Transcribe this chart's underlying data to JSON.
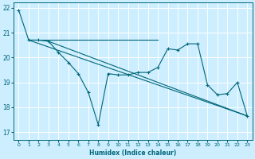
{
  "xlabel": "Humidex (Indice chaleur)",
  "bg_color": "#cceeff",
  "line_color": "#006677",
  "grid_color": "#ffffff",
  "xlim": [
    -0.5,
    23.5
  ],
  "ylim": [
    16.7,
    22.2
  ],
  "yticks": [
    17,
    18,
    19,
    20,
    21,
    22
  ],
  "xticks": [
    0,
    1,
    2,
    3,
    4,
    5,
    6,
    7,
    8,
    9,
    10,
    11,
    12,
    13,
    14,
    15,
    16,
    17,
    18,
    19,
    20,
    21,
    22,
    23
  ],
  "series_with_markers": [
    {
      "x": [
        0,
        1,
        2,
        3,
        4,
        5,
        6,
        7,
        8,
        9
      ],
      "y": [
        21.9,
        20.7,
        20.7,
        20.65,
        20.2,
        19.8,
        19.35,
        18.6,
        17.3,
        19.35
      ]
    },
    {
      "x": [
        10,
        11,
        12,
        13,
        14,
        15,
        16,
        17,
        18,
        19,
        20,
        21,
        22,
        23
      ],
      "y": [
        19.3,
        19.3,
        19.4,
        19.4,
        19.6,
        20.35,
        20.3,
        20.55,
        20.55,
        18.9,
        18.5,
        18.55,
        19.0,
        17.65
      ]
    }
  ],
  "series_lines_only": [
    {
      "x": [
        1,
        14
      ],
      "y": [
        20.7,
        20.7
      ]
    },
    {
      "x": [
        1,
        23
      ],
      "y": [
        20.7,
        17.65
      ]
    },
    {
      "x": [
        3,
        23
      ],
      "y": [
        20.65,
        17.65
      ]
    }
  ]
}
